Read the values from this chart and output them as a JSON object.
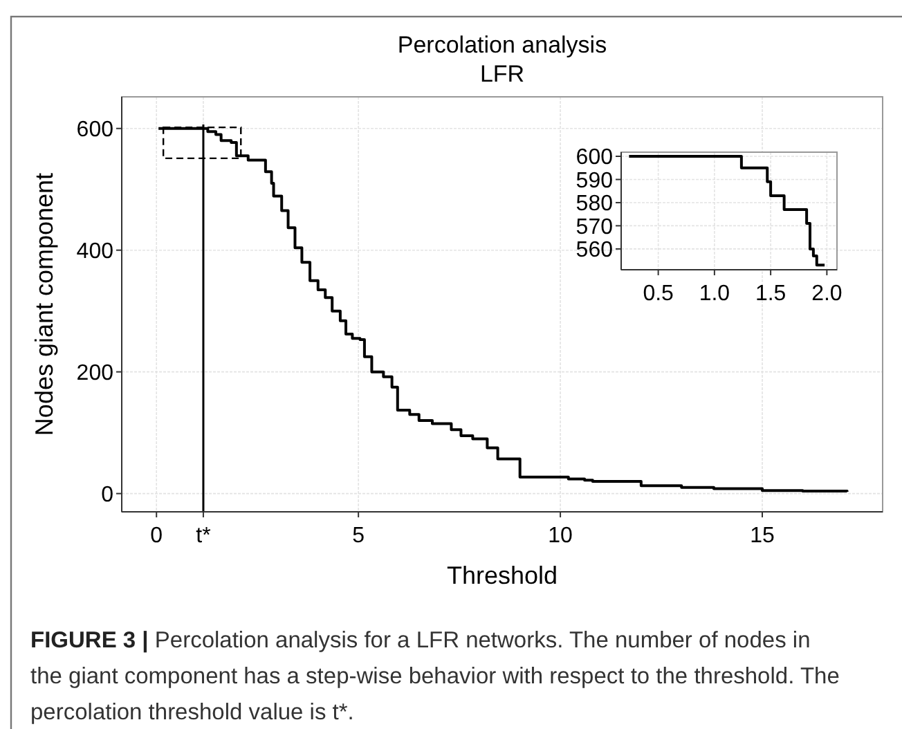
{
  "chart_data": [
    {
      "type": "step",
      "title": "Percolation analysis",
      "subtitle": "LFR",
      "xlabel": "Threshold",
      "ylabel": "Nodes giant component",
      "x": [
        0.05,
        1.27,
        1.47,
        1.6,
        1.85,
        1.98,
        2.27,
        2.7,
        2.85,
        2.9,
        3.1,
        3.26,
        3.43,
        3.6,
        3.8,
        4.0,
        4.18,
        4.35,
        4.55,
        4.69,
        4.85,
        5.04,
        5.15,
        5.33,
        5.62,
        5.83,
        5.97,
        6.27,
        6.5,
        6.83,
        7.3,
        7.54,
        7.83,
        8.19,
        8.45,
        9.0,
        10.2,
        10.6,
        10.8,
        12.0,
        13.0,
        13.8,
        15.0,
        16.0,
        17.1
      ],
      "values": [
        600,
        595,
        590,
        580,
        577,
        555,
        548,
        529,
        510,
        489,
        465,
        437,
        404,
        380,
        350,
        335,
        322,
        300,
        284,
        262,
        255,
        253,
        225,
        200,
        192,
        175,
        137,
        130,
        120,
        115,
        105,
        95,
        90,
        75,
        57,
        27,
        24,
        22,
        20,
        13,
        10,
        8,
        5,
        4,
        3
      ],
      "color": "#000000",
      "xlim": [
        -0.86,
        17.98
      ],
      "ylim": [
        -30,
        652
      ],
      "xticks": [
        0,
        {
          "value": 1.16,
          "label": "t*"
        },
        5,
        10,
        15
      ],
      "yticks": [
        0,
        200,
        400,
        600
      ],
      "grid": true,
      "ref_lines": [
        {
          "axis": "x",
          "value": 1.16,
          "color": "#000000"
        }
      ],
      "annotations": [
        "FIGURE 3 | Percolation analysis for a LFR networks. The number of nodes in the giant component has a step-wise behavior with respect to the threshold. The percolation threshold value is t*."
      ]
    },
    {
      "type": "step",
      "x": [
        0.24,
        1.24,
        1.47,
        1.5,
        1.62,
        1.82,
        1.85,
        1.88,
        1.91,
        1.98
      ],
      "values": [
        600,
        595,
        589,
        583,
        577,
        571,
        560,
        557,
        553,
        553
      ],
      "color": "#000000",
      "xlim": [
        0.17,
        2.09
      ],
      "ylim": [
        551,
        601.8
      ],
      "xticks": [
        0.5,
        {
          "value": 1,
          "label": "1.0"
        },
        1.5,
        {
          "value": 2,
          "label": "2.0"
        }
      ],
      "yticks": [
        560,
        570,
        580,
        590,
        600
      ],
      "grid": true
    }
  ]
}
